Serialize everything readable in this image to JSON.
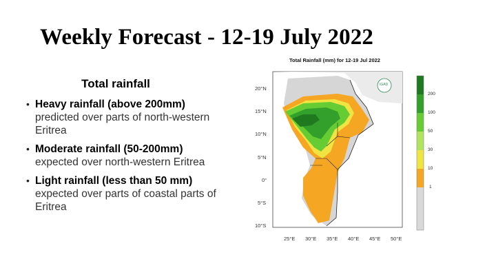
{
  "slide": {
    "title": "Weekly Forecast - 12-19 July 2022"
  },
  "panel": {
    "heading": "Total rainfall",
    "bullets": [
      {
        "head": "Heavy rainfall (above 200mm)",
        "text": "predicted over parts of north-western Eritrea"
      },
      {
        "head": "Moderate rainfall (50-200mm)",
        "text": "expected over  north-western Eritrea"
      },
      {
        "head": "Light rainfall (less than 50 mm)",
        "text": "expected over parts of coastal parts of Eritrea"
      }
    ]
  },
  "map": {
    "title": "Total Rainfall (mm) for 12-19 Jul 2022",
    "logo_text": "IGAD",
    "lat_labels": [
      "20°N",
      "15°N",
      "10°N",
      "5°N",
      "0°",
      "5°S",
      "10°S"
    ],
    "lon_labels": [
      "25°E",
      "30°E",
      "35°E",
      "40°E",
      "45°E",
      "50°E"
    ],
    "legend": {
      "labels": [
        "200",
        "100",
        "50",
        "30",
        "10",
        "1"
      ],
      "colors": [
        "#1f7a1f",
        "#33a02c",
        "#66cc33",
        "#b2e35c",
        "#f0e442",
        "#f5a623",
        "#d9d9d9"
      ]
    }
  }
}
